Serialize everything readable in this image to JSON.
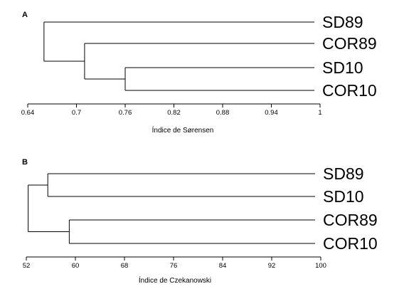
{
  "chart_data": [
    {
      "type": "dendrogram",
      "panel_label": "A",
      "xlabel": "Índice de Sørensen",
      "xlim": [
        0.64,
        1
      ],
      "ticks": [
        0.64,
        0.7,
        0.76,
        0.82,
        0.88,
        0.94,
        1
      ],
      "tick_labels": [
        "0.64",
        "0.7",
        "0.76",
        "0.82",
        "0.88",
        "0.94",
        "1"
      ],
      "leaves": [
        "SD89",
        "COR89",
        "SD10",
        "COR10"
      ],
      "merges": [
        {
          "left": "SD10",
          "right": "COR10",
          "value": 0.76
        },
        {
          "left": "COR89",
          "right": "SD10+COR10",
          "value": 0.71
        },
        {
          "left": "SD89",
          "right": "COR89+SD10+COR10",
          "value": 0.66
        }
      ]
    },
    {
      "type": "dendrogram",
      "panel_label": "B",
      "xlabel": "Índice de Czekanowski",
      "xlim": [
        52,
        100
      ],
      "ticks": [
        52,
        60,
        68,
        76,
        84,
        92,
        100
      ],
      "tick_labels": [
        "52",
        "60",
        "68",
        "76",
        "84",
        "92",
        "100"
      ],
      "leaves": [
        "SD89",
        "SD10",
        "COR89",
        "COR10"
      ],
      "merges": [
        {
          "left": "SD89",
          "right": "SD10",
          "value": 55.5
        },
        {
          "left": "COR89",
          "right": "COR10",
          "value": 59
        },
        {
          "left": "SD89+SD10",
          "right": "COR89+COR10",
          "value": 52.3
        }
      ]
    }
  ]
}
